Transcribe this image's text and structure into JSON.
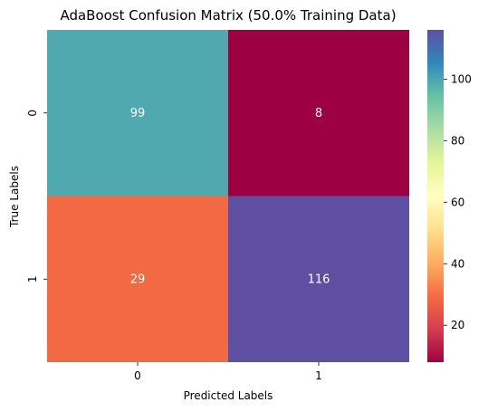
{
  "chart_data": {
    "type": "heatmap",
    "title": "AdaBoost Confusion Matrix (50.0% Training Data)",
    "xlabel": "Predicted Labels",
    "ylabel": "True Labels",
    "x_categories": [
      "0",
      "1"
    ],
    "y_categories": [
      "0",
      "1"
    ],
    "values": [
      [
        99,
        8
      ],
      [
        29,
        116
      ]
    ],
    "colormap": "Spectral",
    "color_range": [
      8,
      116
    ],
    "colorbar_ticks": [
      20,
      40,
      60,
      80,
      100
    ],
    "colorbar_tick_labels": [
      "20",
      "40",
      "60",
      "80",
      "100"
    ],
    "grid": false,
    "legend": "colorbar-right"
  }
}
